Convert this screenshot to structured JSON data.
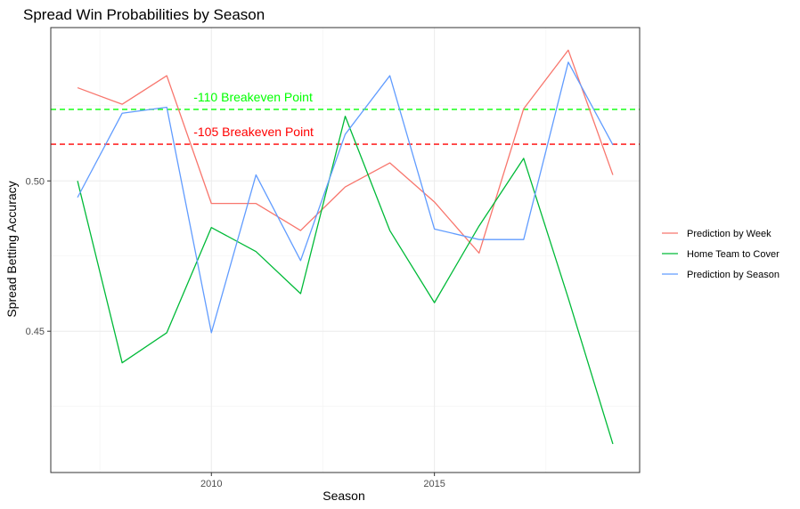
{
  "chart_data": {
    "type": "line",
    "title": "Spread Win Probabilities by Season",
    "xlabel": "Season",
    "ylabel": "Spread Betting Accuracy",
    "xlim": [
      2006.4,
      2019.6
    ],
    "ylim": [
      0.403,
      0.551
    ],
    "x_ticks": [
      2010,
      2015
    ],
    "y_ticks": [
      0.45,
      0.5
    ],
    "y_tick_labels": [
      "0.45",
      "0.50"
    ],
    "grid": true,
    "legend_position": "right",
    "x": [
      2007,
      2008,
      2009,
      2010,
      2011,
      2012,
      2013,
      2014,
      2015,
      2016,
      2017,
      2018,
      2019
    ],
    "series": [
      {
        "name": "Prediction by Week",
        "color": "#F8766D",
        "values": [
          0.531,
          0.5255,
          0.535,
          0.4925,
          0.4925,
          0.4835,
          0.498,
          0.506,
          0.493,
          0.476,
          0.524,
          0.5435,
          0.502
        ]
      },
      {
        "name": "Home Team to Cover",
        "color": "#00BA38",
        "values": [
          0.5,
          0.4395,
          0.4495,
          0.4845,
          0.4765,
          0.4625,
          0.5215,
          0.4835,
          0.4595,
          0.485,
          0.5075,
          0.461,
          0.4125
        ]
      },
      {
        "name": "Prediction by Season",
        "color": "#619CFF",
        "values": [
          0.4945,
          0.5225,
          0.5245,
          0.4495,
          0.502,
          0.4735,
          0.5155,
          0.535,
          0.484,
          0.4805,
          0.4805,
          0.5395,
          0.512
        ]
      }
    ],
    "reference_lines": [
      {
        "label": "-110 Breakeven Point",
        "value": 0.5238,
        "color": "#00FF00"
      },
      {
        "label": "-105 Breakeven Point",
        "value": 0.5122,
        "color": "#FF0000"
      }
    ]
  }
}
